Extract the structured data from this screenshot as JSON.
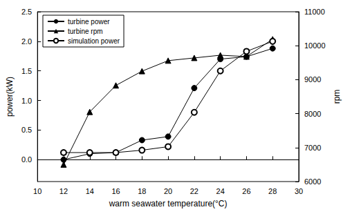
{
  "chart_data": {
    "type": "line",
    "x_label": "warm seawater temperature(°C)",
    "y_label": "power(kW)",
    "y2_label": "rpm",
    "x": [
      12,
      14,
      16,
      18,
      20,
      22,
      24,
      26,
      28
    ],
    "series": [
      {
        "name": "turbine power",
        "color": "#000000",
        "marker": "circle",
        "values": [
          0.0,
          0.1,
          0.12,
          0.33,
          0.39,
          1.21,
          1.7,
          1.74,
          1.88
        ]
      },
      {
        "name": "turbine rpm",
        "color": "#000000",
        "marker": "triangle",
        "axis": "y2",
        "values": [
          6500,
          8050,
          8830,
          9250,
          9560,
          9640,
          9720,
          9680,
          10190
        ]
      },
      {
        "name": "simulation power",
        "color": "#000000",
        "marker": "emptyCircle",
        "values": [
          0.12,
          0.12,
          0.12,
          0.16,
          0.22,
          0.8,
          1.5,
          1.83,
          2.0
        ]
      }
    ],
    "xlim": [
      10,
      30
    ],
    "xticks": [
      10,
      12,
      14,
      16,
      18,
      20,
      22,
      24,
      26,
      28,
      30
    ],
    "ylim": [
      -0.37,
      2.5
    ],
    "yticks": [
      {
        "value": 0,
        "label": "0.0"
      },
      {
        "value": 0.5,
        "label": "0.5"
      },
      {
        "value": 1,
        "label": "1.0"
      },
      {
        "value": 1.5,
        "label": "1.5"
      },
      {
        "value": 2,
        "label": "2.0"
      },
      {
        "value": 2.5,
        "label": "2.5"
      }
    ],
    "y2lim": [
      6000,
      11000
    ],
    "y2ticks": [
      6000,
      7000,
      8000,
      9000,
      10000,
      11000
    ],
    "grid": false,
    "legend": "upper left"
  }
}
